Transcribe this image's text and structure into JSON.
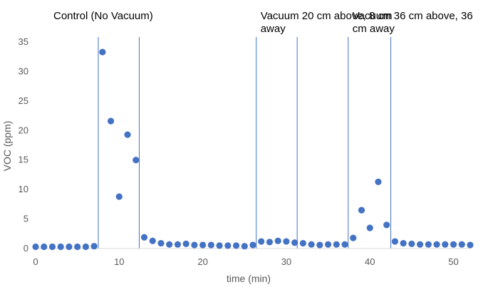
{
  "chart_data": {
    "type": "scatter",
    "xlabel": "time (min)",
    "ylabel": "VOC (ppm)",
    "xlim": [
      0,
      52
    ],
    "ylim": [
      0,
      35
    ],
    "x_ticks": [
      0,
      10,
      20,
      30,
      40,
      50
    ],
    "y_ticks": [
      0,
      5,
      10,
      15,
      20,
      25,
      30,
      35
    ],
    "grid": false,
    "legend": "none",
    "marker_color": "#4472C4",
    "line_color": "#4472C4",
    "series": [
      {
        "x": [
          0,
          1,
          2,
          3,
          4,
          5,
          6,
          7,
          8,
          9,
          10,
          11,
          12,
          13,
          14,
          15,
          16,
          17,
          18,
          19,
          20,
          21,
          22,
          23,
          24,
          25,
          26,
          27,
          28,
          29,
          30,
          31,
          32,
          33,
          34,
          35,
          36,
          37,
          38,
          39,
          40,
          41,
          42,
          43,
          44,
          45,
          46,
          47,
          48,
          49,
          50,
          51,
          52
        ],
        "y": [
          0.3,
          0.3,
          0.3,
          0.3,
          0.3,
          0.3,
          0.3,
          0.4,
          33.3,
          21.6,
          8.8,
          19.3,
          15.0,
          1.9,
          1.3,
          0.9,
          0.7,
          0.7,
          0.8,
          0.6,
          0.6,
          0.6,
          0.5,
          0.5,
          0.5,
          0.4,
          0.6,
          1.2,
          1.1,
          1.3,
          1.2,
          1.0,
          0.9,
          0.7,
          0.6,
          0.7,
          0.7,
          0.7,
          1.8,
          6.5,
          3.5,
          11.3,
          4.0,
          1.2,
          0.9,
          0.8,
          0.7,
          0.7,
          0.7,
          0.7,
          0.7,
          0.7,
          0.6
        ]
      }
    ],
    "vertical_lines_x": [
      7.5,
      12.4,
      26.4,
      31.3,
      37.4,
      42.5
    ],
    "annotations": [
      {
        "lines": [
          "Control (No Vacuum)"
        ],
        "x": 7.5
      },
      {
        "lines": [
          "Vacuum 20 cm above, 8 cm",
          "away"
        ],
        "x": 26.4
      },
      {
        "lines": [
          "Vacuum 36 cm above, 36",
          "cm away"
        ],
        "x": 37.4
      }
    ]
  }
}
